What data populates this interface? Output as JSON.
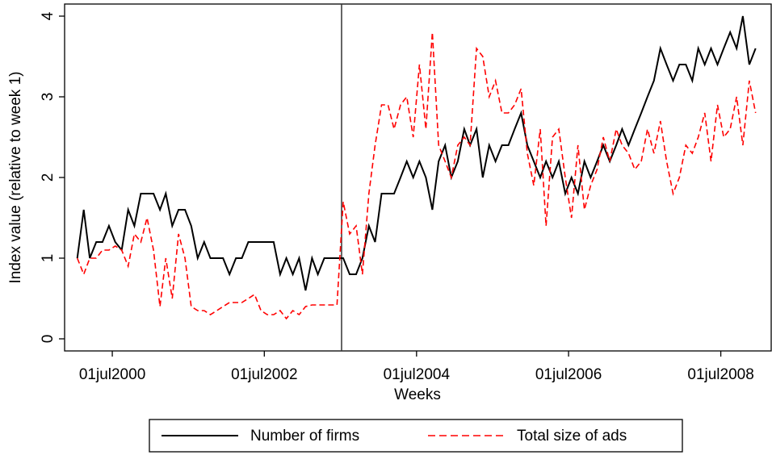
{
  "chart_data": {
    "type": "line",
    "x_label": "Weeks",
    "y_label": "Index value (relative to week 1)",
    "x": [
      "2000-01-15",
      "2000-02-15",
      "2000-03-15",
      "2000-04-15",
      "2000-05-15",
      "2000-06-15",
      "2000-07-15",
      "2000-08-15",
      "2000-09-15",
      "2000-10-15",
      "2000-11-15",
      "2000-12-15",
      "2001-01-15",
      "2001-02-15",
      "2001-03-15",
      "2001-04-15",
      "2001-05-15",
      "2001-06-15",
      "2001-07-15",
      "2001-08-15",
      "2001-09-15",
      "2001-10-15",
      "2001-11-15",
      "2001-12-15",
      "2002-01-15",
      "2002-02-15",
      "2002-03-15",
      "2002-04-15",
      "2002-05-15",
      "2002-06-15",
      "2002-07-15",
      "2002-08-15",
      "2002-09-15",
      "2002-10-15",
      "2002-11-15",
      "2002-12-15",
      "2003-01-15",
      "2003-02-15",
      "2003-03-15",
      "2003-04-15",
      "2003-05-15",
      "2003-06-15",
      "2003-07-15",
      "2003-08-15",
      "2003-09-15",
      "2003-10-15",
      "2003-11-15",
      "2003-12-15",
      "2004-01-15",
      "2004-02-15",
      "2004-03-15",
      "2004-04-15",
      "2004-05-15",
      "2004-06-15",
      "2004-07-15",
      "2004-08-15",
      "2004-09-15",
      "2004-10-15",
      "2004-11-15",
      "2004-12-15",
      "2005-01-15",
      "2005-02-15",
      "2005-03-15",
      "2005-04-15",
      "2005-05-15",
      "2005-06-15",
      "2005-07-15",
      "2005-08-15",
      "2005-09-15",
      "2005-10-15",
      "2005-11-15",
      "2005-12-15",
      "2006-01-15",
      "2006-02-15",
      "2006-03-15",
      "2006-04-15",
      "2006-05-15",
      "2006-06-15",
      "2006-07-15",
      "2006-08-15",
      "2006-09-15",
      "2006-10-15",
      "2006-11-15",
      "2006-12-15",
      "2007-01-15",
      "2007-02-15",
      "2007-03-15",
      "2007-04-15",
      "2007-05-15",
      "2007-06-15",
      "2007-07-15",
      "2007-08-15",
      "2007-09-15",
      "2007-10-15",
      "2007-11-15",
      "2007-12-15",
      "2008-01-15",
      "2008-02-15",
      "2008-03-15",
      "2008-04-15",
      "2008-05-15",
      "2008-06-15",
      "2008-07-15",
      "2008-08-15",
      "2008-09-15",
      "2008-10-15",
      "2008-11-15",
      "2008-12-15"
    ],
    "series": [
      {
        "name": "Number of firms",
        "color": "#000000",
        "dash": false,
        "values": [
          1.0,
          1.6,
          1.0,
          1.2,
          1.2,
          1.4,
          1.2,
          1.1,
          1.6,
          1.4,
          1.8,
          1.8,
          1.8,
          1.6,
          1.8,
          1.4,
          1.6,
          1.6,
          1.4,
          1.0,
          1.2,
          1.0,
          1.0,
          1.0,
          0.8,
          1.0,
          1.0,
          1.2,
          1.2,
          1.2,
          1.2,
          1.2,
          0.8,
          1.0,
          0.8,
          1.0,
          0.6,
          1.0,
          0.8,
          1.0,
          1.0,
          1.0,
          1.0,
          0.8,
          0.8,
          1.0,
          1.4,
          1.2,
          1.8,
          1.8,
          1.8,
          2.0,
          2.2,
          2.0,
          2.2,
          2.0,
          1.6,
          2.2,
          2.4,
          2.0,
          2.2,
          2.6,
          2.4,
          2.6,
          2.0,
          2.4,
          2.2,
          2.4,
          2.4,
          2.6,
          2.8,
          2.4,
          2.2,
          2.0,
          2.2,
          2.0,
          2.2,
          1.8,
          2.0,
          1.8,
          2.2,
          2.0,
          2.2,
          2.4,
          2.2,
          2.4,
          2.6,
          2.4,
          2.6,
          2.8,
          3.0,
          3.2,
          3.6,
          3.4,
          3.2,
          3.4,
          3.4,
          3.2,
          3.6,
          3.4,
          3.6,
          3.4,
          3.6,
          3.8,
          3.6,
          4.0,
          3.4,
          3.6
        ]
      },
      {
        "name": "Total size of ads",
        "color": "#ff0000",
        "dash": true,
        "values": [
          1.0,
          0.8,
          1.0,
          1.0,
          1.1,
          1.1,
          1.15,
          1.1,
          0.9,
          1.3,
          1.2,
          1.5,
          1.1,
          0.4,
          1.0,
          0.5,
          1.3,
          1.0,
          0.4,
          0.35,
          0.35,
          0.3,
          0.35,
          0.4,
          0.45,
          0.45,
          0.45,
          0.5,
          0.55,
          0.35,
          0.3,
          0.3,
          0.35,
          0.25,
          0.35,
          0.3,
          0.4,
          0.42,
          0.42,
          0.42,
          0.42,
          0.42,
          1.7,
          1.3,
          1.4,
          0.8,
          1.8,
          2.4,
          2.9,
          2.9,
          2.6,
          2.9,
          3.0,
          2.5,
          3.4,
          2.6,
          3.8,
          2.4,
          2.2,
          2.0,
          2.4,
          2.5,
          2.4,
          3.6,
          3.5,
          3.0,
          3.2,
          2.8,
          2.8,
          2.9,
          3.1,
          2.3,
          1.9,
          2.6,
          1.4,
          2.5,
          2.6,
          2.0,
          1.5,
          2.4,
          1.6,
          1.9,
          2.1,
          2.5,
          2.2,
          2.6,
          2.4,
          2.3,
          2.1,
          2.2,
          2.6,
          2.3,
          2.7,
          2.2,
          1.8,
          2.0,
          2.4,
          2.3,
          2.5,
          2.8,
          2.2,
          2.9,
          2.5,
          2.6,
          3.0,
          2.4,
          3.2,
          2.8
        ]
      }
    ],
    "xlim": [
      "1999-11-15",
      "2009-02-28"
    ],
    "xticks": [
      {
        "value": "2000-07-01",
        "label": "01jul2000"
      },
      {
        "value": "2002-07-01",
        "label": "01jul2002"
      },
      {
        "value": "2004-07-01",
        "label": "01jul2004"
      },
      {
        "value": "2006-07-01",
        "label": "01jul2006"
      },
      {
        "value": "2008-07-01",
        "label": "01jul2008"
      }
    ],
    "ylim": [
      -0.15,
      4.15
    ],
    "yticks": [
      0,
      1,
      2,
      3,
      4
    ],
    "reference_line": "2003-07-07",
    "grid": false,
    "legend": "bottom"
  }
}
